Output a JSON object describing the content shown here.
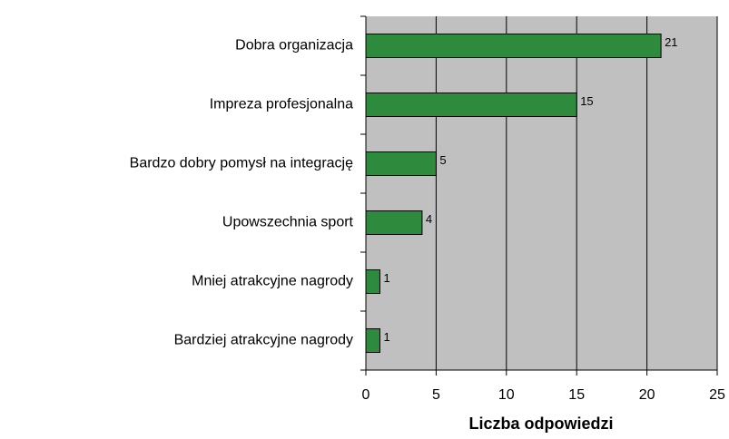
{
  "chart_data": {
    "type": "bar",
    "orientation": "horizontal",
    "categories": [
      "Dobra organizacja",
      "Impreza profesjonalna",
      "Bardzo dobry pomysł na integrację",
      "Upowszechnia sport",
      "Mniej atrakcyjne nagrody",
      "Bardziej atrakcyjne nagrody"
    ],
    "values": [
      21,
      15,
      5,
      4,
      1,
      1
    ],
    "color": "#2e8a3c",
    "x_label": "Liczba odpowiedzi",
    "xlim": [
      0,
      25
    ],
    "xticks": [
      0,
      5,
      10,
      15,
      20,
      25
    ],
    "grid": true
  }
}
